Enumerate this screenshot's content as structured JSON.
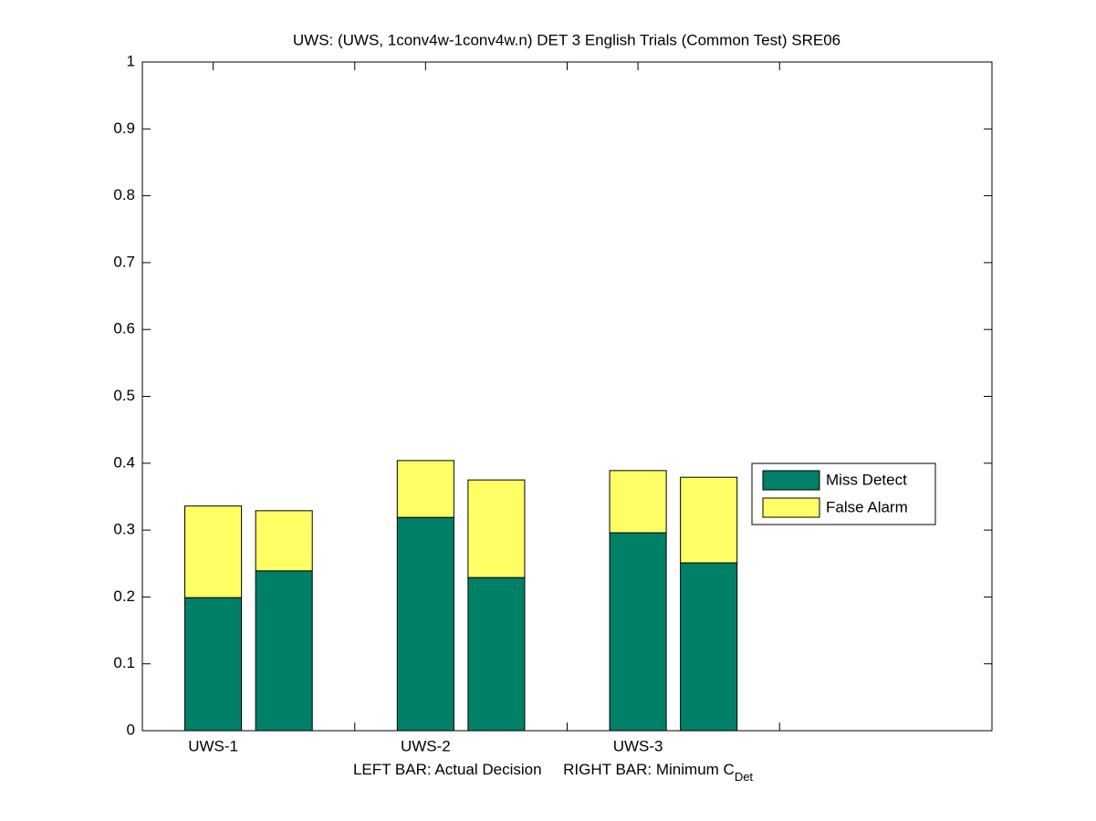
{
  "chart_data": {
    "type": "stacked-bar",
    "title": "UWS: (UWS, 1conv4w-1conv4w.n) DET 3 English Trials (Common Test) SRE06",
    "xlabel": "LEFT BAR: Actual Decision     RIGHT BAR: Minimum C",
    "xlabel_subscript": "Det",
    "x": [
      1,
      2,
      4,
      5,
      7,
      8
    ],
    "xlim": [
      0,
      12
    ],
    "xticks": [
      {
        "value": 1,
        "label": "UWS-1"
      },
      {
        "value": 3,
        "label": null
      },
      {
        "value": 4,
        "label": "UWS-2"
      },
      {
        "value": 6,
        "label": null
      },
      {
        "value": 7,
        "label": "UWS-3"
      },
      {
        "value": 9,
        "label": null
      }
    ],
    "ylim": [
      0,
      1
    ],
    "yticks": [
      0,
      0.1,
      0.2,
      0.3,
      0.4,
      0.5,
      0.6,
      0.7,
      0.8,
      0.9,
      1
    ],
    "series": [
      {
        "name": "Miss Detect",
        "color": "#008066",
        "values": [
          0.199,
          0.239,
          0.319,
          0.229,
          0.296,
          0.251
        ]
      },
      {
        "name": "False Alarm",
        "color": "#ffff66",
        "values": [
          0.137,
          0.09,
          0.085,
          0.146,
          0.093,
          0.128
        ]
      }
    ],
    "grid": false,
    "legend": "east"
  }
}
